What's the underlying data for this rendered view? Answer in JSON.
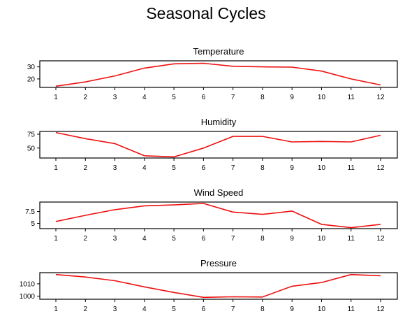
{
  "figure": {
    "title": "Seasonal Cycles"
  },
  "chart_data": [
    {
      "type": "line",
      "title": "Temperature",
      "xlabel": "",
      "ylabel": "",
      "x": [
        1,
        2,
        3,
        4,
        5,
        6,
        7,
        8,
        9,
        10,
        11,
        12
      ],
      "series": [
        {
          "values": [
            14,
            17.5,
            22.5,
            29,
            32.5,
            33,
            30.5,
            30,
            29.8,
            26.5,
            20,
            15
          ],
          "color": "#ee1111"
        }
      ],
      "ylim": [
        13,
        35
      ],
      "yticks": [
        20,
        30
      ],
      "grid": false
    },
    {
      "type": "line",
      "title": "Humidity",
      "xlabel": "",
      "ylabel": "",
      "x": [
        1,
        2,
        3,
        4,
        5,
        6,
        7,
        8,
        9,
        10,
        11,
        12
      ],
      "series": [
        {
          "values": [
            78,
            67,
            58,
            36,
            34,
            50,
            71,
            71,
            61,
            62,
            61,
            73
          ],
          "color": "#ee1111"
        }
      ],
      "ylim": [
        32,
        80
      ],
      "yticks": [
        50,
        75
      ],
      "grid": false
    },
    {
      "type": "line",
      "title": "Wind Speed",
      "xlabel": "",
      "ylabel": "",
      "x": [
        1,
        2,
        3,
        4,
        5,
        6,
        7,
        8,
        9,
        10,
        11,
        12
      ],
      "series": [
        {
          "values": [
            5.4,
            6.7,
            7.9,
            8.7,
            8.9,
            9.2,
            7.4,
            6.9,
            7.6,
            4.8,
            4.1,
            4.8
          ],
          "color": "#ee1111"
        }
      ],
      "ylim": [
        3.9,
        9.5
      ],
      "yticks": [
        5.0,
        7.5
      ],
      "grid": false
    },
    {
      "type": "line",
      "title": "Pressure",
      "xlabel": "",
      "ylabel": "",
      "x": [
        1,
        2,
        3,
        4,
        5,
        6,
        7,
        8,
        9,
        10,
        11,
        12
      ],
      "series": [
        {
          "values": [
            1017.5,
            1015.5,
            1012.5,
            1007.5,
            1003,
            999,
            999.5,
            999.3,
            1008,
            1011,
            1017.5,
            1016.5
          ],
          "color": "#ee1111"
        }
      ],
      "ylim": [
        997.5,
        1019
      ],
      "yticks": [
        1000,
        1010
      ],
      "grid": false
    }
  ]
}
